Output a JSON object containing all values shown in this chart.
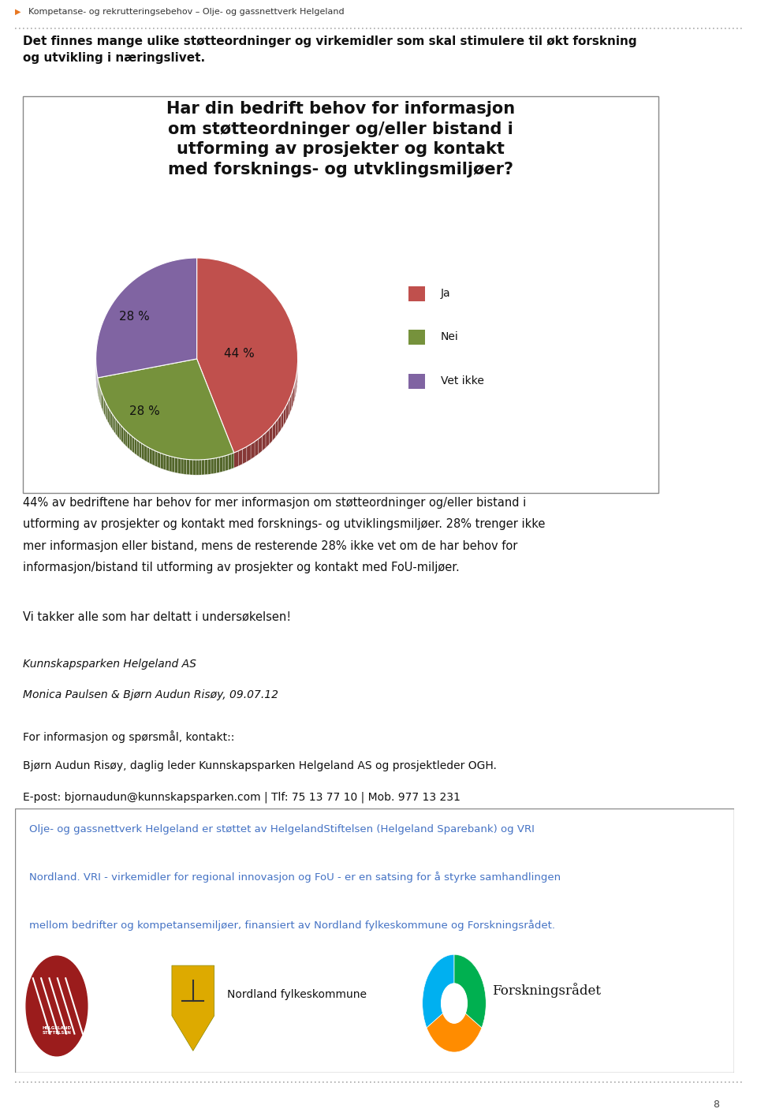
{
  "header_text": "Kompetanse- og rekrutteringsebehov – Olje- og gassnettverk Helgeland",
  "header_color": "#E87722",
  "intro_text": "Det finnes mange ulike støtteordninger og virkemidler som skal stimulere til økt forskning\nog utvikling i næringslivet.",
  "chart_title": "Har din bedrift behov for informasjon\nom støtteordninger og/eller bistand i\nutforming av prosjekter og kontakt\nmed forsknings- og utvklingsmiljøer?",
  "pie_values": [
    44,
    28,
    28
  ],
  "pie_colors": [
    "#C0504D",
    "#76923C",
    "#8064A2"
  ],
  "pie_labels": [
    "44 %",
    "28 %",
    "28 %"
  ],
  "legend_labels": [
    "Ja",
    "Nei",
    "Vet ikke"
  ],
  "body_lines": [
    "44% av bedriftene har behov for mer informasjon om støtteordninger og/eller bistand i",
    "utforming av prosjekter og kontakt med forsknings- og utviklingsmiljøer. 28% trenger ikke",
    "mer informasjon eller bistand, mens de resterende 28% ikke vet om de har behov for",
    "informasjon/bistand til utforming av prosjekter og kontakt med FoU-miljøer."
  ],
  "thanks_text": "Vi takker alle som har deltatt i undersøkelsen!",
  "contact_line1": "Kunnskapsparken Helgeland AS",
  "contact_line2": "Monica Paulsen & Bjørn Audun Risøy, 09.07.12",
  "contact_line3": "For informasjon og spørsmål, kontakt::",
  "contact_line4": "Bjørn Audun Risøy, daglig leder Kunnskapsparken Helgeland AS og prosjektleder OGH.",
  "contact_line5": "E-post: bjornaudun@kunnskapsparken.com | Tlf: 75 13 77 10 | Mob. 977 13 231",
  "footer_text1": "Olje- og gassnettverk Helgeland er støttet av HelgelandStiftelsen (Helgeland Sparebank) og VRI",
  "footer_text2": "Nordland. VRI - virkemidler for regional innovasjon og FoU - er en satsing for å styrke samhandlingen",
  "footer_text3": "mellom bedrifter og kompetansemiljøer, finansiert av Nordland fylkeskommune og Forskningsrådet.",
  "footer_logo_text": "Nordland fylkeskommune",
  "footer_forskningsradet": "Forskningsrådet",
  "footer_helgeland": "HELGELAND\nSTIFTELSEN",
  "page_num": "8",
  "dotted_line_color": "#AAAAAA",
  "bg_color": "#FFFFFF",
  "footer_border_color": "#666666",
  "footer_text_color": "#4472C4"
}
